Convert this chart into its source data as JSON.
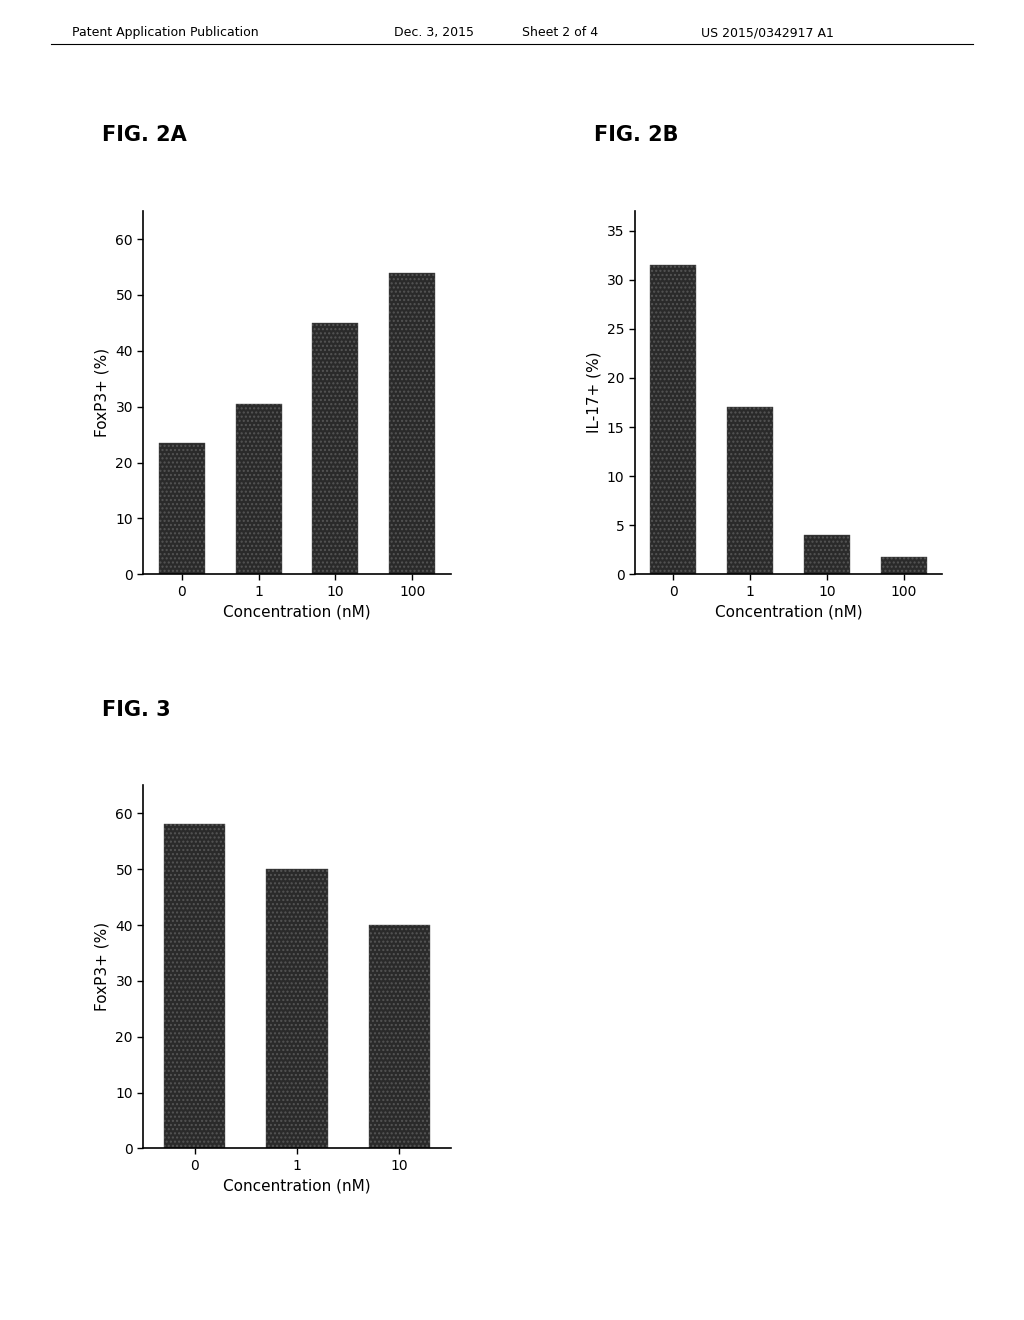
{
  "fig2a": {
    "title": "FIG. 2A",
    "categories": [
      "0",
      "1",
      "10",
      "100"
    ],
    "values": [
      23.5,
      30.5,
      45.0,
      54.0
    ],
    "ylabel": "FoxP3+ (%)",
    "xlabel": "Concentration (nM)",
    "ylim": [
      0,
      65
    ],
    "yticks": [
      0,
      10,
      20,
      30,
      40,
      50,
      60
    ]
  },
  "fig2b": {
    "title": "FIG. 2B",
    "categories": [
      "0",
      "1",
      "10",
      "100"
    ],
    "values": [
      31.5,
      17.0,
      4.0,
      1.8
    ],
    "ylabel": "IL-17+ (%)",
    "xlabel": "Concentration (nM)",
    "ylim": [
      0,
      37
    ],
    "yticks": [
      0,
      5,
      10,
      15,
      20,
      25,
      30,
      35
    ]
  },
  "fig3": {
    "title": "FIG. 3",
    "categories": [
      "0",
      "1",
      "10"
    ],
    "values": [
      58.0,
      50.0,
      40.0
    ],
    "ylabel": "FoxP3+ (%)",
    "xlabel": "Concentration (nM)",
    "ylim": [
      0,
      65
    ],
    "yticks": [
      0,
      10,
      20,
      30,
      40,
      50,
      60
    ]
  },
  "bar_color": "#2a2a2a",
  "hatch": "....",
  "bg_color": "#ffffff",
  "header_text": "Patent Application Publication",
  "header_date": "Dec. 3, 2015",
  "header_sheet": "Sheet 2 of 4",
  "header_patent": "US 2015/0342917 A1",
  "title_fontsize": 15,
  "axis_fontsize": 11,
  "tick_fontsize": 10,
  "header_fontsize": 9
}
